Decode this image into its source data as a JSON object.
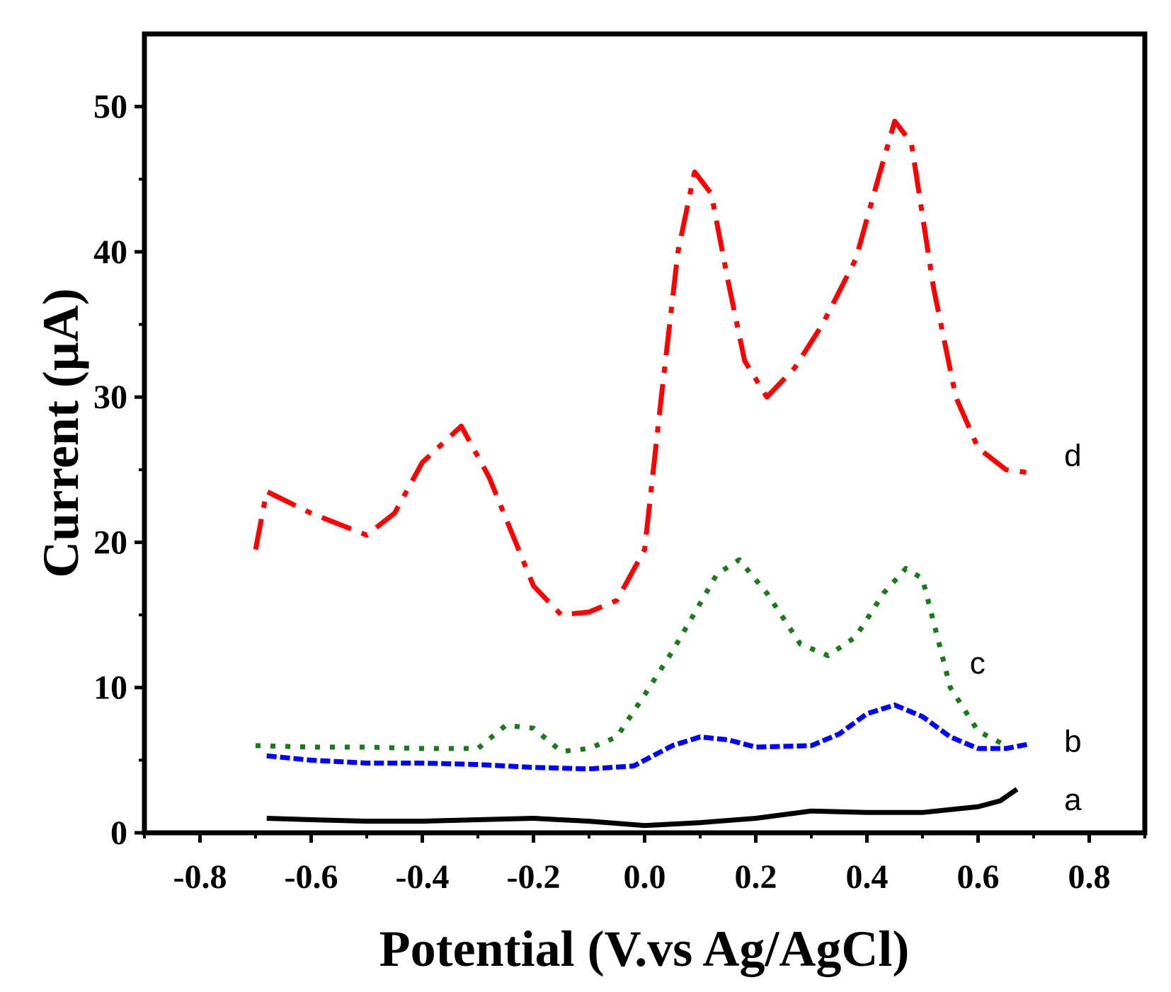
{
  "chart_data": {
    "type": "line",
    "title": "",
    "xlabel": "Potential (V.vs Ag/AgCl)",
    "ylabel": "Current (μA)",
    "xlim": [
      -0.9,
      0.9
    ],
    "ylim": [
      0,
      55
    ],
    "xticks": [
      -0.8,
      -0.6,
      -0.4,
      -0.2,
      0.0,
      0.2,
      0.4,
      0.6,
      0.8
    ],
    "xtick_labels": [
      "-0.8",
      "-0.6",
      "-0.4",
      "-0.2",
      "0.0",
      "0.2",
      "0.4",
      "0.6",
      "0.8"
    ],
    "yticks": [
      0,
      10,
      20,
      30,
      40,
      50
    ],
    "ytick_labels": [
      "0",
      "10",
      "20",
      "30",
      "40",
      "50"
    ],
    "grid": false,
    "series": [
      {
        "name": "a",
        "color": "#000000",
        "style": "solid",
        "x": [
          -0.68,
          -0.6,
          -0.5,
          -0.4,
          -0.3,
          -0.2,
          -0.1,
          0.0,
          0.1,
          0.2,
          0.3,
          0.4,
          0.5,
          0.6,
          0.64,
          0.67
        ],
        "y": [
          1.0,
          0.9,
          0.8,
          0.8,
          0.9,
          1.0,
          0.8,
          0.5,
          0.7,
          1.0,
          1.5,
          1.4,
          1.4,
          1.8,
          2.2,
          3.0
        ]
      },
      {
        "name": "b",
        "color": "#0000ff",
        "style": "dashed",
        "x": [
          -0.68,
          -0.6,
          -0.5,
          -0.4,
          -0.3,
          -0.2,
          -0.1,
          -0.02,
          0.05,
          0.1,
          0.15,
          0.2,
          0.3,
          0.35,
          0.4,
          0.45,
          0.5,
          0.55,
          0.6,
          0.65,
          0.69
        ],
        "y": [
          5.3,
          5.0,
          4.8,
          4.8,
          4.7,
          4.5,
          4.4,
          4.6,
          6.0,
          6.6,
          6.4,
          5.9,
          6.0,
          6.8,
          8.2,
          8.8,
          8.0,
          6.6,
          5.8,
          5.8,
          6.1
        ]
      },
      {
        "name": "c",
        "color": "#1a7a1a",
        "style": "dotted",
        "x": [
          -0.7,
          -0.6,
          -0.5,
          -0.4,
          -0.3,
          -0.25,
          -0.2,
          -0.15,
          -0.1,
          -0.05,
          0.0,
          0.05,
          0.1,
          0.13,
          0.17,
          0.22,
          0.28,
          0.33,
          0.38,
          0.43,
          0.47,
          0.5,
          0.55,
          0.6,
          0.65
        ],
        "y": [
          6.0,
          5.9,
          5.9,
          5.8,
          5.8,
          7.4,
          7.2,
          5.6,
          5.8,
          6.6,
          9.5,
          12.5,
          15.8,
          17.8,
          18.8,
          16.5,
          13.0,
          12.2,
          13.5,
          16.5,
          18.2,
          17.5,
          10.0,
          7.0,
          6.0
        ]
      },
      {
        "name": "d",
        "color": "#ff0000",
        "style": "dashdot",
        "x": [
          -0.7,
          -0.68,
          -0.6,
          -0.5,
          -0.45,
          -0.4,
          -0.33,
          -0.28,
          -0.2,
          -0.15,
          -0.1,
          -0.05,
          0.0,
          0.03,
          0.06,
          0.09,
          0.12,
          0.15,
          0.18,
          0.22,
          0.27,
          0.32,
          0.38,
          0.42,
          0.45,
          0.48,
          0.52,
          0.56,
          0.6,
          0.65,
          0.69
        ],
        "y": [
          19.5,
          23.5,
          22.0,
          20.5,
          22.0,
          25.5,
          28.0,
          24.5,
          17.0,
          15.0,
          15.2,
          16.0,
          19.5,
          30.0,
          40.0,
          45.5,
          44.0,
          38.0,
          32.5,
          30.0,
          32.0,
          35.0,
          39.5,
          45.0,
          49.0,
          47.5,
          37.5,
          30.0,
          26.5,
          25.0,
          24.8
        ]
      }
    ],
    "series_labels": [
      {
        "text": "a",
        "x": 0.755,
        "y": 2.3
      },
      {
        "text": "b",
        "x": 0.755,
        "y": 6.3
      },
      {
        "text": "c",
        "x": 0.585,
        "y": 11.7
      },
      {
        "text": "d",
        "x": 0.755,
        "y": 26.0
      }
    ]
  }
}
